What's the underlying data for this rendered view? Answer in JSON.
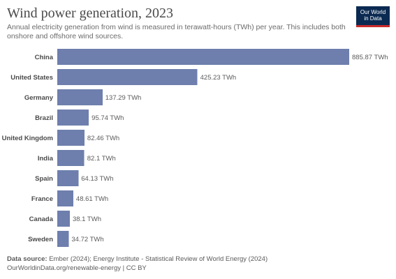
{
  "header": {
    "title": "Wind power generation, 2023",
    "subtitle": "Annual electricity generation from wind is measured in terawatt-hours (TWh) per year. This includes both onshore and offshore wind sources.",
    "logo": {
      "line1": "Our World",
      "line2": "in Data"
    }
  },
  "colors": {
    "bar": "#6e7fad",
    "logo_bg": "#0b2a52",
    "logo_accent": "#c92b2b"
  },
  "chart_data": {
    "type": "bar",
    "orientation": "horizontal",
    "categories": [
      "China",
      "United States",
      "Germany",
      "Brazil",
      "United Kingdom",
      "India",
      "Spain",
      "France",
      "Canada",
      "Sweden"
    ],
    "values": [
      885.87,
      425.23,
      137.29,
      95.74,
      82.46,
      82.1,
      64.13,
      48.61,
      38.1,
      34.72
    ],
    "value_labels": [
      "885.87 TWh",
      "425.23 TWh",
      "137.29 TWh",
      "95.74 TWh",
      "82.46 TWh",
      "82.1 TWh",
      "64.13 TWh",
      "48.61 TWh",
      "38.1 TWh",
      "34.72 TWh"
    ],
    "unit": "TWh",
    "title": "Wind power generation, 2023",
    "grid": false,
    "legend": "none"
  },
  "footer": {
    "source_prefix": "Data source:",
    "source_text": " Ember (2024); Energy Institute - Statistical Review of World Energy (2024)",
    "url_line": "OurWorldinData.org/renewable-energy | CC BY"
  }
}
